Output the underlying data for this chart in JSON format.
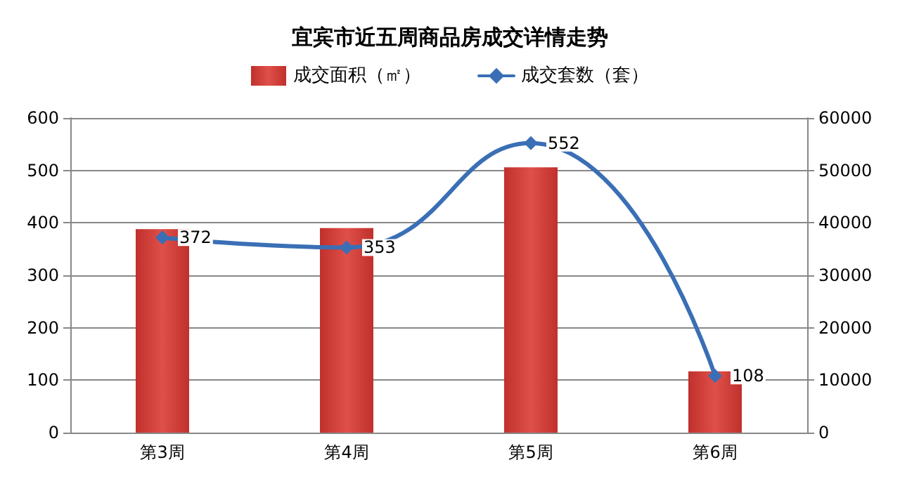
{
  "chart_data": {
    "type": "bar",
    "title": "宜宾市近五周商品房成交详情走势",
    "categories": [
      "第3周",
      "第4周",
      "第5周",
      "第6周"
    ],
    "series": [
      {
        "name": "成交面积（㎡）",
        "color": "#c0302c",
        "axis": "y2",
        "values": [
          38800,
          39000,
          50600,
          11700
        ]
      },
      {
        "name": "成交套数（套）",
        "color": "#3a6fb5",
        "type": "line",
        "values": [
          372,
          353,
          552,
          108
        ],
        "value_labels": [
          "372",
          "353",
          "552",
          "108"
        ]
      }
    ],
    "ylim": [
      0,
      600
    ],
    "yticks": [
      0,
      100,
      200,
      300,
      400,
      500,
      600
    ],
    "y2lim": [
      0,
      60000
    ],
    "y2ticks": [
      0,
      10000,
      20000,
      30000,
      40000,
      50000,
      60000
    ],
    "grid": "y",
    "legend": "top",
    "marker": "diamond"
  }
}
